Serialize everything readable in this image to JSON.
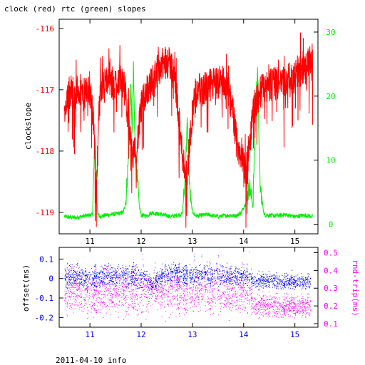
{
  "title": "clock (red) rtc (green) slopes",
  "footer": "2011-04-10 info",
  "colors": {
    "clock": "#ff0000",
    "rtc": "#00ee00",
    "offset": "#0000ff",
    "rndtrip": "#ff00ff",
    "axis": "#000000"
  },
  "chart_data": [
    {
      "type": "line",
      "title": "clock (red) rtc (green) slopes",
      "xlabel": "",
      "ylabel": "clockslope",
      "xlim": [
        10.4,
        15.45
      ],
      "xticks": [
        "11",
        "12",
        "13",
        "14",
        "15"
      ],
      "ylim_left": [
        -119.35,
        -115.85
      ],
      "yticks_left": [
        "-116",
        "-117",
        "-118",
        "-119"
      ],
      "ylim_right": [
        -1.5,
        32
      ],
      "yticks_right": [
        "0",
        "10",
        "20",
        "30"
      ],
      "grid": false,
      "series": [
        {
          "name": "clock",
          "axis": "left",
          "x": [
            10.5,
            10.58,
            10.65,
            10.72,
            10.8,
            10.88,
            10.95,
            11.02,
            11.08,
            11.12,
            11.17,
            11.22,
            11.3,
            11.38,
            11.45,
            11.52,
            11.6,
            11.68,
            11.75,
            11.8,
            11.85,
            11.92,
            12.0,
            12.1,
            12.2,
            12.3,
            12.4,
            12.5,
            12.58,
            12.65,
            12.72,
            12.78,
            12.85,
            12.9,
            12.95,
            13.02,
            13.1,
            13.2,
            13.3,
            13.4,
            13.5,
            13.6,
            13.7,
            13.8,
            13.85,
            13.92,
            14.0,
            14.05,
            14.12,
            14.2,
            14.28,
            14.35,
            14.45,
            14.55,
            14.65,
            14.75,
            14.85,
            14.95,
            15.05,
            15.15,
            15.25,
            15.35
          ],
          "y": [
            -117.5,
            -117.1,
            -117.0,
            -117.05,
            -117.0,
            -117.1,
            -117.0,
            -117.1,
            -117.6,
            -118.7,
            -117.5,
            -116.9,
            -116.9,
            -116.8,
            -117.0,
            -116.85,
            -116.8,
            -117.0,
            -117.5,
            -117.9,
            -118.1,
            -117.9,
            -117.3,
            -117.0,
            -116.9,
            -116.7,
            -116.6,
            -116.55,
            -116.6,
            -116.8,
            -117.3,
            -117.9,
            -118.3,
            -118.4,
            -117.8,
            -117.2,
            -117.0,
            -117.0,
            -116.95,
            -116.9,
            -116.9,
            -116.85,
            -117.0,
            -117.4,
            -117.8,
            -118.0,
            -118.2,
            -118.35,
            -117.8,
            -117.3,
            -117.1,
            -117.0,
            -116.95,
            -116.9,
            -116.9,
            -116.85,
            -116.85,
            -116.8,
            -116.7,
            -116.7,
            -116.6,
            -116.5
          ]
        },
        {
          "name": "rtc",
          "axis": "right",
          "x": [
            10.5,
            10.7,
            10.9,
            11.05,
            11.1,
            11.15,
            11.2,
            11.3,
            11.5,
            11.65,
            11.7,
            11.75,
            11.8,
            11.82,
            11.85,
            11.88,
            11.92,
            11.96,
            12.0,
            12.1,
            12.2,
            12.4,
            12.6,
            12.8,
            12.85,
            12.9,
            12.95,
            13.0,
            13.05,
            13.1,
            13.3,
            13.5,
            13.7,
            13.85,
            13.95,
            14.05,
            14.12,
            14.18,
            14.22,
            14.27,
            14.32,
            14.4,
            14.6,
            14.8,
            15.0,
            15.2,
            15.35
          ],
          "y": [
            1.2,
            1.0,
            1.3,
            1.5,
            14.0,
            1.5,
            1.2,
            1.4,
            1.6,
            1.8,
            3.5,
            10.0,
            22.0,
            14.0,
            24.0,
            12.0,
            8.0,
            3.0,
            1.4,
            1.3,
            1.8,
            1.5,
            1.2,
            1.6,
            6.0,
            16.0,
            5.0,
            2.0,
            1.4,
            1.3,
            1.5,
            1.2,
            1.4,
            1.3,
            1.8,
            3.5,
            6.0,
            2.5,
            14.0,
            25.0,
            6.0,
            1.5,
            1.3,
            1.5,
            1.2,
            1.4,
            1.2
          ]
        }
      ]
    },
    {
      "type": "scatter",
      "xlabel": "",
      "ylabel_left": "offset(ms)",
      "ylabel_right": "rnd-trip(ms)",
      "xlim": [
        10.4,
        15.45
      ],
      "xticks": [
        "11",
        "12",
        "13",
        "14",
        "15"
      ],
      "ylim_left": [
        -0.25,
        0.16
      ],
      "yticks_left": [
        "0.1",
        "0",
        "-0.1",
        "-0.2"
      ],
      "ylim_right": [
        0.08,
        0.53
      ],
      "yticks_right": [
        "0.5",
        "0.4",
        "0.3",
        "0.2",
        "0.1"
      ],
      "grid": false,
      "series": [
        {
          "name": "offset",
          "axis": "left",
          "x": [
            10.5,
            10.8,
            11.1,
            11.3,
            11.6,
            11.9,
            12.1,
            12.2,
            12.4,
            12.7,
            13.0,
            13.3,
            13.6,
            13.9,
            14.1,
            14.2,
            14.5,
            14.8,
            15.1,
            15.3
          ],
          "y_center": [
            0.01,
            0.01,
            0.005,
            0.01,
            0.015,
            0.01,
            0.0,
            -0.04,
            0.02,
            0.025,
            0.02,
            0.02,
            0.02,
            0.015,
            0.01,
            -0.01,
            -0.01,
            -0.015,
            -0.015,
            -0.015
          ],
          "y_spread": [
            0.045,
            0.045,
            0.05,
            0.045,
            0.05,
            0.045,
            0.045,
            0.03,
            0.045,
            0.045,
            0.045,
            0.045,
            0.045,
            0.045,
            0.04,
            0.03,
            0.03,
            0.03,
            0.03,
            0.03
          ]
        },
        {
          "name": "rnd-trip",
          "axis": "right",
          "x": [
            10.5,
            10.8,
            11.1,
            11.3,
            11.6,
            11.9,
            12.1,
            12.2,
            12.4,
            12.7,
            13.0,
            13.3,
            13.6,
            13.9,
            14.1,
            14.2,
            14.5,
            14.8,
            15.1,
            15.3
          ],
          "y_center": [
            0.28,
            0.28,
            0.27,
            0.28,
            0.28,
            0.28,
            0.27,
            0.3,
            0.28,
            0.28,
            0.28,
            0.28,
            0.28,
            0.28,
            0.27,
            0.21,
            0.2,
            0.2,
            0.2,
            0.2
          ],
          "y_spread": [
            0.1,
            0.1,
            0.11,
            0.1,
            0.1,
            0.1,
            0.1,
            0.05,
            0.1,
            0.1,
            0.1,
            0.1,
            0.1,
            0.1,
            0.1,
            0.05,
            0.05,
            0.05,
            0.05,
            0.05
          ]
        }
      ]
    }
  ]
}
